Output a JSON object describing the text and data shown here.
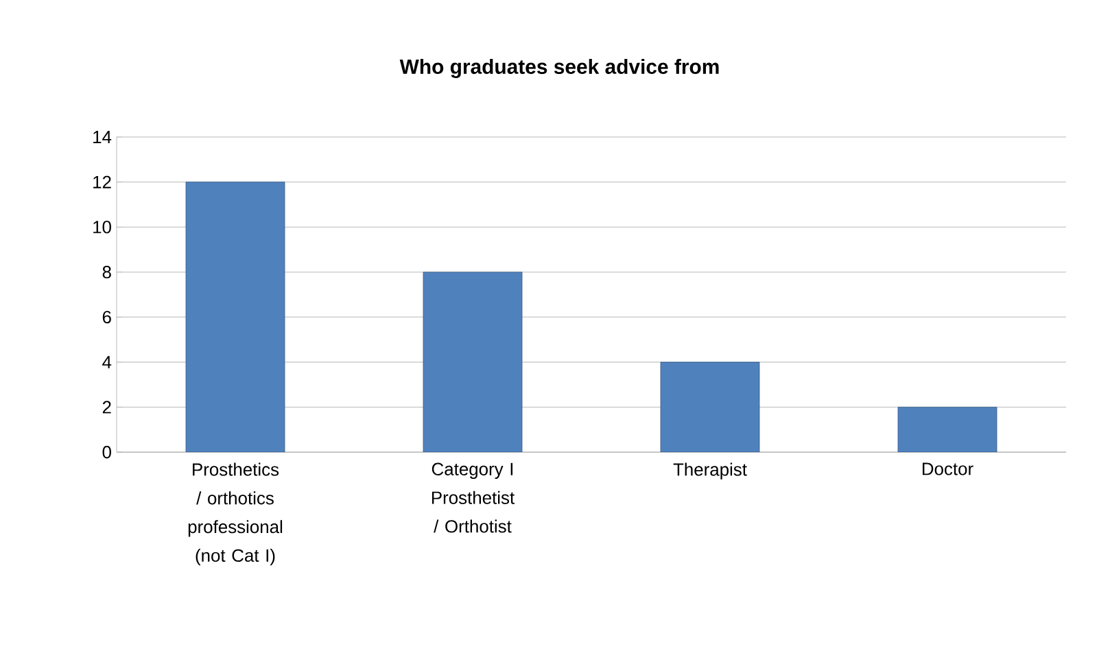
{
  "chart_data": {
    "type": "bar",
    "title": "Who graduates seek advice from",
    "categories": [
      "Prosthetics / orthotics professional (not Cat I)",
      "Category I Prosthetist / Orthotist",
      "Therapist",
      "Doctor"
    ],
    "values": [
      12,
      8,
      4,
      2
    ],
    "color": "#4f81bd",
    "ylim": [
      0,
      14
    ],
    "yticks": [
      0,
      2,
      4,
      6,
      8,
      10,
      12,
      14
    ],
    "grid": "y"
  }
}
